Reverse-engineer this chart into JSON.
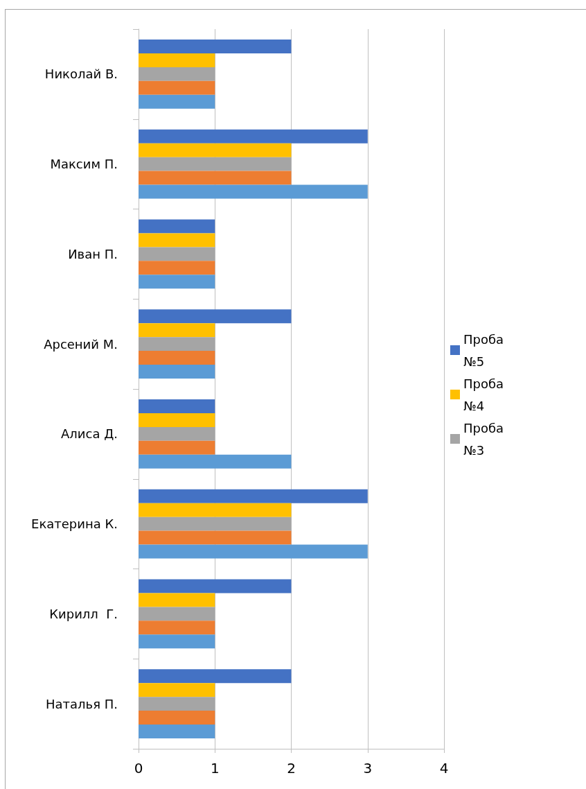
{
  "chart_data": {
    "type": "bar",
    "orientation": "horizontal",
    "categories": [
      "Николай В.",
      "Максим П.",
      "Иван П.",
      "Арсений М.",
      "Алиса Д.",
      "Екатерина К.",
      "Кирилл  Г.",
      "Наталья П."
    ],
    "series": [
      {
        "color": "#5b9bd5",
        "values": [
          1,
          3,
          1,
          1,
          2,
          3,
          1,
          1
        ]
      },
      {
        "color": "#ed7d31",
        "values": [
          1,
          2,
          1,
          1,
          1,
          2,
          1,
          1
        ]
      },
      {
        "name": "Проба №3",
        "color": "#a5a5a5",
        "values": [
          1,
          2,
          1,
          1,
          1,
          2,
          1,
          1
        ]
      },
      {
        "name": "Проба №4",
        "color": "#ffc000",
        "values": [
          1,
          2,
          1,
          1,
          1,
          2,
          1,
          1
        ]
      },
      {
        "name": "Проба №5",
        "color": "#4472c4",
        "values": [
          2,
          3,
          1,
          2,
          1,
          3,
          2,
          2
        ]
      }
    ],
    "xlim": [
      0,
      4
    ],
    "xticks": [
      0,
      1,
      2,
      3,
      4
    ],
    "grid": "x",
    "legend": "right"
  }
}
